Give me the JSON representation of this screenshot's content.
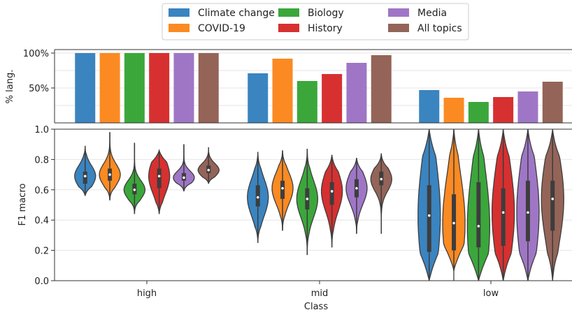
{
  "colors": {
    "Climate change": "#3a84c0",
    "COVID-19": "#fb8a22",
    "Biology": "#3ba73b",
    "History": "#d73030",
    "Media": "#9f76c6",
    "All topics": "#946458"
  },
  "chart_data": [
    {
      "type": "bar",
      "ylabel": "% lang.",
      "ytick_labels": [
        "100%",
        "50%"
      ],
      "ylim": [
        0,
        105
      ],
      "grid": true,
      "categories": [
        "high",
        "mid",
        "low"
      ],
      "series": [
        {
          "name": "Climate change",
          "values": [
            100,
            71,
            47
          ]
        },
        {
          "name": "COVID-19",
          "values": [
            100,
            92,
            36
          ]
        },
        {
          "name": "Biology",
          "values": [
            100,
            60,
            30
          ]
        },
        {
          "name": "History",
          "values": [
            100,
            70,
            37
          ]
        },
        {
          "name": "Media",
          "values": [
            100,
            86,
            45
          ]
        },
        {
          "name": "All topics",
          "values": [
            100,
            97,
            59
          ]
        }
      ]
    },
    {
      "type": "violin",
      "xlabel": "Class",
      "ylabel": "F1 macro",
      "ylim": [
        0,
        1
      ],
      "yticks": [
        "0.0",
        "0.2",
        "0.4",
        "0.6",
        "0.8",
        "1.0"
      ],
      "grid": true,
      "categories": [
        "high",
        "mid",
        "low"
      ],
      "legend": {
        "position": "top-center",
        "columns": 3,
        "entries": [
          "Climate change",
          "COVID-19",
          "Biology",
          "History",
          "Media",
          "All topics"
        ]
      },
      "series": [
        {
          "name": "Climate change",
          "groups": [
            {
              "min": 0.56,
              "q1": 0.64,
              "median": 0.69,
              "q3": 0.72,
              "max": 0.89
            },
            {
              "min": 0.25,
              "q1": 0.49,
              "median": 0.55,
              "q3": 0.63,
              "max": 0.85
            },
            {
              "min": 0.0,
              "q1": 0.19,
              "median": 0.43,
              "q3": 0.63,
              "max": 1.0
            }
          ]
        },
        {
          "name": "COVID-19",
          "groups": [
            {
              "min": 0.53,
              "q1": 0.66,
              "median": 0.7,
              "q3": 0.74,
              "max": 0.98
            },
            {
              "min": 0.33,
              "q1": 0.54,
              "median": 0.61,
              "q3": 0.66,
              "max": 0.86
            },
            {
              "min": 0.07,
              "q1": 0.2,
              "median": 0.38,
              "q3": 0.57,
              "max": 1.0
            }
          ]
        },
        {
          "name": "Biology",
          "groups": [
            {
              "min": 0.44,
              "q1": 0.57,
              "median": 0.6,
              "q3": 0.64,
              "max": 0.91
            },
            {
              "min": 0.17,
              "q1": 0.47,
              "median": 0.54,
              "q3": 0.61,
              "max": 0.87
            },
            {
              "min": 0.0,
              "q1": 0.22,
              "median": 0.36,
              "q3": 0.65,
              "max": 1.0
            }
          ]
        },
        {
          "name": "History",
          "groups": [
            {
              "min": 0.44,
              "q1": 0.61,
              "median": 0.69,
              "q3": 0.74,
              "max": 0.86
            },
            {
              "min": 0.22,
              "q1": 0.5,
              "median": 0.59,
              "q3": 0.65,
              "max": 0.83
            },
            {
              "min": 0.0,
              "q1": 0.23,
              "median": 0.45,
              "q3": 0.61,
              "max": 1.0
            }
          ]
        },
        {
          "name": "Media",
          "groups": [
            {
              "min": 0.59,
              "q1": 0.66,
              "median": 0.68,
              "q3": 0.71,
              "max": 0.9
            },
            {
              "min": 0.31,
              "q1": 0.55,
              "median": 0.61,
              "q3": 0.67,
              "max": 0.81
            },
            {
              "min": 0.0,
              "q1": 0.26,
              "median": 0.45,
              "q3": 0.66,
              "max": 1.0
            }
          ]
        },
        {
          "name": "All topics",
          "groups": [
            {
              "min": 0.64,
              "q1": 0.71,
              "median": 0.73,
              "q3": 0.76,
              "max": 0.88
            },
            {
              "min": 0.31,
              "q1": 0.63,
              "median": 0.67,
              "q3": 0.72,
              "max": 0.84
            },
            {
              "min": 0.0,
              "q1": 0.33,
              "median": 0.54,
              "q3": 0.66,
              "max": 1.0
            }
          ]
        }
      ]
    }
  ]
}
